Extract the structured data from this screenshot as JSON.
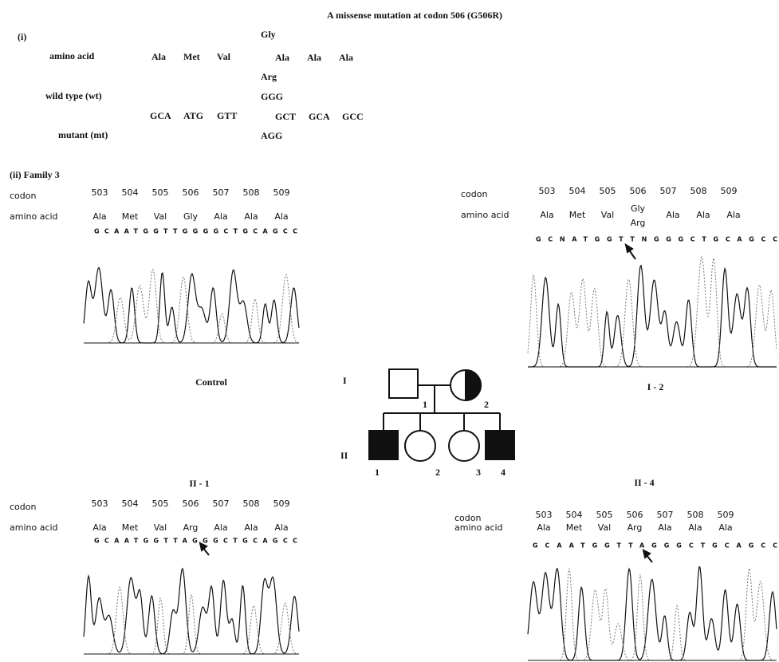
{
  "title": "A missense mutation at codon 506 (G506R)",
  "part_i": {
    "label": "(i)",
    "amino_acid": {
      "label": "amino acid",
      "before": [
        "Ala",
        "Met",
        "Val"
      ],
      "codon506": [
        "Gly",
        "Arg"
      ],
      "after": [
        "Ala",
        "Ala",
        "Ala"
      ]
    },
    "wild_type": {
      "label": "wild type (wt)",
      "codon506": "GGG"
    },
    "shared": {
      "before": [
        "GCA",
        "ATG",
        "GTT"
      ],
      "after": [
        "GCT",
        "GCA",
        "GCC"
      ]
    },
    "mutant": {
      "label": "mutant (mt)",
      "codon506": "AGG"
    }
  },
  "part_ii": {
    "label": "(ii) Family 3",
    "panels": [
      {
        "name": "Control",
        "codon_label": "codon",
        "codons": [
          503,
          504,
          505,
          506,
          507,
          508,
          509
        ],
        "amino_acid_label": "amino acid",
        "amino_acids": [
          "Ala",
          "Met",
          "Val",
          "Gly",
          "Ala",
          "Ala",
          "Ala"
        ],
        "sequence": "GCAATGGTTGGGGCTGCAGCC"
      },
      {
        "name": "I - 2",
        "codon_label": "codon",
        "codons": [
          503,
          504,
          505,
          506,
          507,
          508,
          509
        ],
        "amino_acid_label": "amino acid",
        "amino_acids": [
          "Ala",
          "Met",
          "Val",
          [
            "Gly",
            "Arg"
          ],
          "Ala",
          "Ala",
          "Ala"
        ],
        "sequence": "GCNATGGTTNGGGCTGCAGCC"
      },
      {
        "name": "II - 1",
        "codon_label": "codon",
        "codons": [
          503,
          504,
          505,
          506,
          507,
          508,
          509
        ],
        "amino_acid_label": "amino acid",
        "amino_acids": [
          "Ala",
          "Met",
          "Val",
          "Arg",
          "Ala",
          "Ala",
          "Ala"
        ],
        "sequence": "GCAATGGTTAGGGCTGCAGCC"
      },
      {
        "name": "II - 4",
        "codon_label": "codon",
        "codons": [
          503,
          504,
          505,
          506,
          507,
          508,
          509
        ],
        "amino_acid_label": "amino acid",
        "amino_acids": [
          "Ala",
          "Met",
          "Val",
          "Arg",
          "Ala",
          "Ala",
          "Ala"
        ],
        "sequence": "GCAATGGTTAGGGCTGCAGCC"
      }
    ]
  },
  "pedigree": {
    "generations": [
      "I",
      "II"
    ],
    "gen1": [
      "1",
      "2"
    ],
    "gen2": [
      "1",
      "2",
      "3",
      "4"
    ]
  }
}
